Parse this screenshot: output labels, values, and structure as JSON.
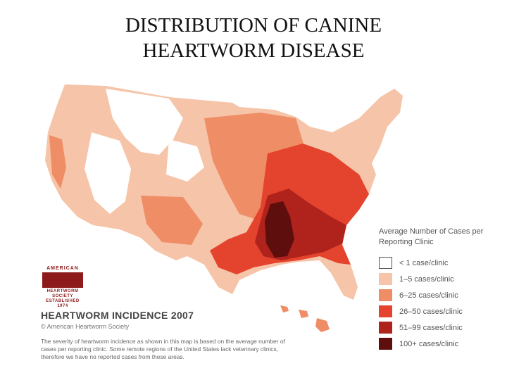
{
  "slide": {
    "title_line1": "DISTRIBUTION OF CANINE",
    "title_line2": "HEARTWORM DISEASE"
  },
  "map": {
    "caption": "HEARTWORM INCIDENCE 2007",
    "copyright": "© American Heartworm Society",
    "footnote": "The severity of heartworm incidence as shown in this map is based on the average number of cases per reporting clinic. Some remote regions of the United States lack veterinary clinics, therefore we have no reported cases from these areas.",
    "logo": {
      "line1": "AMERICAN",
      "line2": "HEARTWORM",
      "line3": "SOCIETY",
      "line4": "ESTABLISHED 1974"
    },
    "legend": {
      "title": "Average Number of Cases per Reporting Clinic",
      "items": [
        {
          "label": "< 1 case/clinic",
          "color": "#ffffff"
        },
        {
          "label": "1–5 cases/clinic",
          "color": "#f6c4a8"
        },
        {
          "label": "6–25 cases/clinic",
          "color": "#ef8d66"
        },
        {
          "label": "26–50 cases/clinic",
          "color": "#e4432d"
        },
        {
          "label": "51–99 cases/clinic",
          "color": "#b0221c"
        },
        {
          "label": "100+ cases/clinic",
          "color": "#5e0e0c"
        }
      ]
    }
  }
}
